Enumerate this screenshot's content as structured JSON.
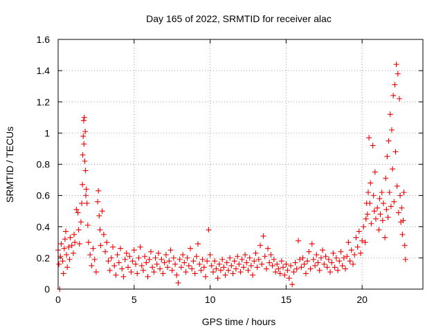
{
  "chart_data": {
    "type": "scatter",
    "title": "Day 165 of 2022, SRMTID for receiver alac",
    "xlabel": "GPS time / hours",
    "ylabel": "SRMTID / TECUs",
    "xlim": [
      0,
      24
    ],
    "ylim": [
      0,
      1.6
    ],
    "x_ticks": [
      0,
      5,
      10,
      15,
      20
    ],
    "x_tick_labels": [
      "0",
      "5",
      "10",
      "15",
      "20"
    ],
    "y_ticks": [
      0,
      0.2,
      0.4,
      0.6,
      0.8,
      1.0,
      1.2,
      1.4,
      1.6
    ],
    "y_tick_labels": [
      "0",
      "0.2",
      "0.4",
      "0.6",
      "0.8",
      "1",
      "1.2",
      "1.4",
      "1.6"
    ],
    "grid": true,
    "marker": "plus",
    "series": [
      {
        "name": "SRMTID",
        "color": "#ee0000",
        "points": [
          [
            0.0,
            0.25
          ],
          [
            0.05,
            0.16
          ],
          [
            0.1,
            0.0
          ],
          [
            0.15,
            0.21
          ],
          [
            0.2,
            0.29
          ],
          [
            0.3,
            0.18
          ],
          [
            0.35,
            0.1
          ],
          [
            0.4,
            0.26
          ],
          [
            0.45,
            0.32
          ],
          [
            0.5,
            0.37
          ],
          [
            0.55,
            0.22
          ],
          [
            0.6,
            0.14
          ],
          [
            0.7,
            0.27
          ],
          [
            0.75,
            0.19
          ],
          [
            0.8,
            0.33
          ],
          [
            0.9,
            0.28
          ],
          [
            1.0,
            0.23
          ],
          [
            1.05,
            0.35
          ],
          [
            1.1,
            0.3
          ],
          [
            1.2,
            0.51
          ],
          [
            1.3,
            0.49
          ],
          [
            1.35,
            0.38
          ],
          [
            1.4,
            0.29
          ],
          [
            1.5,
            0.43
          ],
          [
            1.55,
            0.55
          ],
          [
            1.6,
            0.67
          ],
          [
            1.62,
            0.86
          ],
          [
            1.65,
            0.98
          ],
          [
            1.68,
            1.08
          ],
          [
            1.7,
            0.93
          ],
          [
            1.72,
            1.1
          ],
          [
            1.75,
            0.82
          ],
          [
            1.78,
            1.01
          ],
          [
            1.8,
            0.76
          ],
          [
            1.82,
            0.6
          ],
          [
            1.85,
            0.64
          ],
          [
            1.9,
            0.55
          ],
          [
            1.95,
            0.41
          ],
          [
            2.0,
            0.3
          ],
          [
            2.1,
            0.22
          ],
          [
            2.2,
            0.15
          ],
          [
            2.3,
            0.26
          ],
          [
            2.4,
            0.19
          ],
          [
            2.5,
            0.11
          ],
          [
            2.6,
            0.56
          ],
          [
            2.65,
            0.63
          ],
          [
            2.7,
            0.47
          ],
          [
            2.75,
            0.38
          ],
          [
            2.8,
            0.28
          ],
          [
            2.9,
            0.5
          ],
          [
            3.0,
            0.35
          ],
          [
            3.1,
            0.24
          ],
          [
            3.2,
            0.3
          ],
          [
            3.3,
            0.18
          ],
          [
            3.4,
            0.12
          ],
          [
            3.5,
            0.2
          ],
          [
            3.6,
            0.27
          ],
          [
            3.7,
            0.15
          ],
          [
            3.8,
            0.09
          ],
          [
            3.9,
            0.22
          ],
          [
            4.0,
            0.17
          ],
          [
            4.1,
            0.26
          ],
          [
            4.2,
            0.13
          ],
          [
            4.3,
            0.08
          ],
          [
            4.4,
            0.19
          ],
          [
            4.5,
            0.23
          ],
          [
            4.6,
            0.14
          ],
          [
            4.7,
            0.21
          ],
          [
            4.8,
            0.11
          ],
          [
            4.9,
            0.18
          ],
          [
            5.0,
            0.25
          ],
          [
            5.1,
            0.16
          ],
          [
            5.2,
            0.1
          ],
          [
            5.3,
            0.2
          ],
          [
            5.4,
            0.27
          ],
          [
            5.5,
            0.15
          ],
          [
            5.6,
            0.12
          ],
          [
            5.7,
            0.21
          ],
          [
            5.8,
            0.17
          ],
          [
            5.9,
            0.08
          ],
          [
            6.0,
            0.19
          ],
          [
            6.1,
            0.24
          ],
          [
            6.2,
            0.14
          ],
          [
            6.3,
            0.11
          ],
          [
            6.4,
            0.2
          ],
          [
            6.5,
            0.16
          ],
          [
            6.6,
            0.23
          ],
          [
            6.7,
            0.13
          ],
          [
            6.8,
            0.19
          ],
          [
            6.9,
            0.1
          ],
          [
            7.0,
            0.17
          ],
          [
            7.1,
            0.22
          ],
          [
            7.2,
            0.14
          ],
          [
            7.3,
            0.18
          ],
          [
            7.4,
            0.25
          ],
          [
            7.5,
            0.12
          ],
          [
            7.6,
            0.2
          ],
          [
            7.7,
            0.16
          ],
          [
            7.8,
            0.09
          ],
          [
            7.9,
            0.04
          ],
          [
            8.0,
            0.19
          ],
          [
            8.1,
            0.14
          ],
          [
            8.2,
            0.22
          ],
          [
            8.3,
            0.17
          ],
          [
            8.4,
            0.11
          ],
          [
            8.5,
            0.2
          ],
          [
            8.6,
            0.15
          ],
          [
            8.7,
            0.26
          ],
          [
            8.8,
            0.13
          ],
          [
            8.9,
            0.18
          ],
          [
            9.0,
            0.1
          ],
          [
            9.1,
            0.21
          ],
          [
            9.2,
            0.29
          ],
          [
            9.3,
            0.16
          ],
          [
            9.4,
            0.12
          ],
          [
            9.5,
            0.19
          ],
          [
            9.6,
            0.14
          ],
          [
            9.7,
            0.08
          ],
          [
            9.8,
            0.18
          ],
          [
            9.9,
            0.38
          ],
          [
            10.0,
            0.22
          ],
          [
            10.1,
            0.15
          ],
          [
            10.2,
            0.11
          ],
          [
            10.3,
            0.18
          ],
          [
            10.4,
            0.13
          ],
          [
            10.5,
            0.07
          ],
          [
            10.6,
            0.16
          ],
          [
            10.7,
            0.12
          ],
          [
            10.8,
            0.19
          ],
          [
            10.9,
            0.14
          ],
          [
            11.0,
            0.09
          ],
          [
            11.1,
            0.17
          ],
          [
            11.2,
            0.12
          ],
          [
            11.3,
            0.2
          ],
          [
            11.4,
            0.15
          ],
          [
            11.5,
            0.1
          ],
          [
            11.6,
            0.18
          ],
          [
            11.7,
            0.13
          ],
          [
            11.8,
            0.21
          ],
          [
            11.9,
            0.16
          ],
          [
            12.0,
            0.11
          ],
          [
            12.1,
            0.19
          ],
          [
            12.2,
            0.14
          ],
          [
            12.3,
            0.22
          ],
          [
            12.4,
            0.17
          ],
          [
            12.5,
            0.12
          ],
          [
            12.6,
            0.2
          ],
          [
            12.7,
            0.15
          ],
          [
            12.8,
            0.09
          ],
          [
            12.9,
            0.18
          ],
          [
            13.0,
            0.23
          ],
          [
            13.1,
            0.14
          ],
          [
            13.2,
            0.19
          ],
          [
            13.3,
            0.28
          ],
          [
            13.4,
            0.16
          ],
          [
            13.5,
            0.34
          ],
          [
            13.6,
            0.21
          ],
          [
            13.7,
            0.13
          ],
          [
            13.8,
            0.26
          ],
          [
            13.9,
            0.17
          ],
          [
            14.0,
            0.22
          ],
          [
            14.1,
            0.15
          ],
          [
            14.2,
            0.19
          ],
          [
            14.3,
            0.11
          ],
          [
            14.4,
            0.16
          ],
          [
            14.5,
            0.13
          ],
          [
            14.6,
            0.1
          ],
          [
            14.7,
            0.18
          ],
          [
            14.8,
            0.14
          ],
          [
            14.9,
            0.09
          ],
          [
            15.0,
            0.16
          ],
          [
            15.1,
            0.12
          ],
          [
            15.2,
            0.07
          ],
          [
            15.3,
            0.15
          ],
          [
            15.4,
            0.03
          ],
          [
            15.5,
            0.11
          ],
          [
            15.6,
            0.17
          ],
          [
            15.7,
            0.13
          ],
          [
            15.8,
            0.31
          ],
          [
            15.9,
            0.19
          ],
          [
            16.0,
            0.14
          ],
          [
            16.1,
            0.2
          ],
          [
            16.2,
            0.16
          ],
          [
            16.3,
            0.1
          ],
          [
            16.4,
            0.18
          ],
          [
            16.5,
            0.24
          ],
          [
            16.6,
            0.13
          ],
          [
            16.7,
            0.29
          ],
          [
            16.8,
            0.19
          ],
          [
            16.9,
            0.15
          ],
          [
            17.0,
            0.22
          ],
          [
            17.1,
            0.17
          ],
          [
            17.2,
            0.12
          ],
          [
            17.3,
            0.2
          ],
          [
            17.4,
            0.25
          ],
          [
            17.5,
            0.16
          ],
          [
            17.6,
            0.21
          ],
          [
            17.7,
            0.14
          ],
          [
            17.8,
            0.19
          ],
          [
            17.9,
            0.11
          ],
          [
            18.0,
            0.17
          ],
          [
            18.1,
            0.23
          ],
          [
            18.2,
            0.14
          ],
          [
            18.3,
            0.2
          ],
          [
            18.4,
            0.12
          ],
          [
            18.5,
            0.18
          ],
          [
            18.6,
            0.24
          ],
          [
            18.7,
            0.15
          ],
          [
            18.8,
            0.2
          ],
          [
            18.9,
            0.13
          ],
          [
            19.0,
            0.21
          ],
          [
            19.1,
            0.3
          ],
          [
            19.2,
            0.18
          ],
          [
            19.3,
            0.25
          ],
          [
            19.4,
            0.16
          ],
          [
            19.5,
            0.22
          ],
          [
            19.6,
            0.33
          ],
          [
            19.7,
            0.27
          ],
          [
            19.8,
            0.37
          ],
          [
            19.9,
            0.23
          ],
          [
            20.0,
            0.31
          ],
          [
            20.1,
            0.4
          ],
          [
            20.2,
            0.3
          ],
          [
            20.25,
            0.45
          ],
          [
            20.3,
            0.55
          ],
          [
            20.35,
            0.48
          ],
          [
            20.4,
            0.62
          ],
          [
            20.45,
            0.97
          ],
          [
            20.5,
            0.55
          ],
          [
            20.55,
            0.68
          ],
          [
            20.6,
            0.42
          ],
          [
            20.7,
            0.92
          ],
          [
            20.75,
            0.6
          ],
          [
            20.8,
            0.5
          ],
          [
            20.85,
            0.75
          ],
          [
            20.9,
            0.45
          ],
          [
            21.0,
            0.52
          ],
          [
            21.1,
            0.38
          ],
          [
            21.15,
            0.58
          ],
          [
            21.2,
            0.48
          ],
          [
            21.3,
            0.62
          ],
          [
            21.35,
            0.44
          ],
          [
            21.4,
            0.55
          ],
          [
            21.5,
            0.33
          ],
          [
            21.55,
            0.71
          ],
          [
            21.6,
            0.51
          ],
          [
            21.65,
            0.85
          ],
          [
            21.7,
            0.46
          ],
          [
            21.75,
            0.95
          ],
          [
            21.8,
            0.62
          ],
          [
            21.85,
            1.12
          ],
          [
            21.9,
            0.53
          ],
          [
            21.95,
            1.02
          ],
          [
            22.0,
            0.77
          ],
          [
            22.05,
            1.24
          ],
          [
            22.1,
            0.56
          ],
          [
            22.15,
            1.31
          ],
          [
            22.2,
            0.88
          ],
          [
            22.25,
            1.44
          ],
          [
            22.3,
            0.66
          ],
          [
            22.35,
            1.38
          ],
          [
            22.4,
            0.49
          ],
          [
            22.45,
            1.22
          ],
          [
            22.5,
            0.6
          ],
          [
            22.55,
            0.43
          ],
          [
            22.6,
            0.52
          ],
          [
            22.65,
            0.35
          ],
          [
            22.7,
            0.44
          ],
          [
            22.75,
            0.62
          ],
          [
            22.8,
            0.28
          ],
          [
            22.85,
            0.19
          ]
        ]
      }
    ]
  }
}
